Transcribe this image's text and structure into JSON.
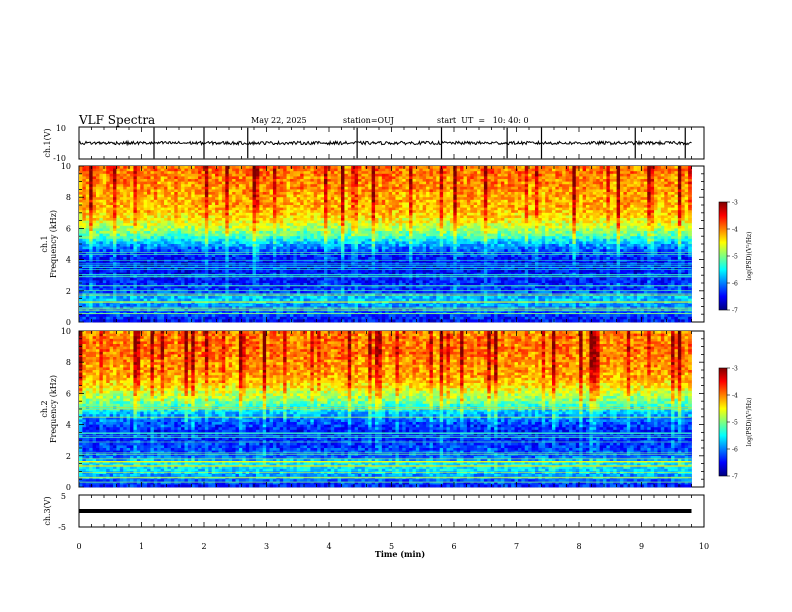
{
  "header": {
    "title": "VLF Spectra",
    "date": "May 22, 2025",
    "station": "station=OUJ",
    "start": "start  UT  =   10: 40: 0"
  },
  "chart_data": [
    {
      "type": "line",
      "panel": "ch1-waveform",
      "ylabel": "ch.1(V)",
      "ylim": [
        -10,
        10
      ],
      "ytick_labels": [
        "10",
        "-10"
      ],
      "x_range_min": [
        0,
        9.8
      ],
      "series": [
        {
          "baseline": 0.0,
          "noise_amplitude": 1.0,
          "spike_times": [
            1.2,
            2.0,
            2.7,
            4.45,
            5.8,
            6.85,
            7.4,
            8.9,
            9.7
          ]
        }
      ]
    },
    {
      "type": "heatmap",
      "panel": "ch1-spectrogram",
      "ylabel": "ch.1",
      "ylabel2": "Frequency (kHz)",
      "ylim": [
        0,
        10
      ],
      "ytick_labels": [
        "0",
        "2",
        "4",
        "6",
        "8",
        "10"
      ],
      "x_range_min": [
        0,
        9.8
      ],
      "colorbar": {
        "label": "log(PSD)(V²/Hz)",
        "range": [
          -7,
          -3
        ],
        "tick_labels": [
          "-3",
          "-4",
          "-5",
          "-6",
          "-7"
        ]
      },
      "profile_log_psd": [
        {
          "f": 0.0,
          "v": -6.5
        },
        {
          "f": 0.5,
          "v": -6.2
        },
        {
          "f": 1.0,
          "v": -6.0
        },
        {
          "f": 1.5,
          "v": -5.7
        },
        {
          "f": 2.0,
          "v": -6.3
        },
        {
          "f": 2.5,
          "v": -6.4
        },
        {
          "f": 3.0,
          "v": -6.5
        },
        {
          "f": 3.5,
          "v": -6.6
        },
        {
          "f": 4.0,
          "v": -6.5
        },
        {
          "f": 4.5,
          "v": -6.3
        },
        {
          "f": 5.0,
          "v": -5.9
        },
        {
          "f": 5.5,
          "v": -5.3
        },
        {
          "f": 6.0,
          "v": -4.9
        },
        {
          "f": 6.5,
          "v": -4.6
        },
        {
          "f": 7.0,
          "v": -4.4
        },
        {
          "f": 7.5,
          "v": -4.3
        },
        {
          "f": 8.0,
          "v": -4.3
        },
        {
          "f": 8.5,
          "v": -4.2
        },
        {
          "f": 9.0,
          "v": -4.2
        },
        {
          "f": 9.5,
          "v": -4.1
        },
        {
          "f": 10.0,
          "v": -4.1
        }
      ]
    },
    {
      "type": "heatmap",
      "panel": "ch2-spectrogram",
      "ylabel": "ch.2",
      "ylabel2": "Frequency (kHz)",
      "ylim": [
        0,
        10
      ],
      "ytick_labels": [
        "0",
        "2",
        "4",
        "6",
        "8",
        "10"
      ],
      "x_range_min": [
        0,
        9.8
      ],
      "colorbar": {
        "label": "log(PSD)(V²/Hz)",
        "range": [
          -7,
          -3
        ],
        "tick_labels": [
          "-3",
          "-4",
          "-5",
          "-6",
          "-7"
        ]
      },
      "profile_log_psd": [
        {
          "f": 0.0,
          "v": -6.4
        },
        {
          "f": 0.5,
          "v": -6.1
        },
        {
          "f": 1.0,
          "v": -5.7
        },
        {
          "f": 1.5,
          "v": -5.5
        },
        {
          "f": 2.0,
          "v": -6.2
        },
        {
          "f": 2.5,
          "v": -6.3
        },
        {
          "f": 3.0,
          "v": -6.4
        },
        {
          "f": 3.5,
          "v": -6.5
        },
        {
          "f": 4.0,
          "v": -6.3
        },
        {
          "f": 4.5,
          "v": -6.0
        },
        {
          "f": 5.0,
          "v": -5.6
        },
        {
          "f": 5.5,
          "v": -5.1
        },
        {
          "f": 6.0,
          "v": -4.8
        },
        {
          "f": 6.5,
          "v": -4.5
        },
        {
          "f": 7.0,
          "v": -4.3
        },
        {
          "f": 7.5,
          "v": -4.2
        },
        {
          "f": 8.0,
          "v": -4.2
        },
        {
          "f": 8.5,
          "v": -4.1
        },
        {
          "f": 9.0,
          "v": -4.1
        },
        {
          "f": 9.5,
          "v": -4.1
        },
        {
          "f": 10.0,
          "v": -4.2
        }
      ]
    },
    {
      "type": "line",
      "panel": "ch3-waveform",
      "ylabel": "ch.3(V)",
      "ylim": [
        -5,
        5
      ],
      "ytick_labels": [
        "5",
        "-5"
      ],
      "x_range_min": [
        0,
        9.8
      ],
      "series": [
        {
          "baseline": 0.0,
          "noise_amplitude": 0.0
        }
      ]
    }
  ],
  "x_axis": {
    "label": "Time (min)",
    "xlim": [
      0,
      10
    ],
    "tick_labels": [
      "0",
      "1",
      "2",
      "3",
      "4",
      "5",
      "6",
      "7",
      "8",
      "9",
      "10"
    ]
  },
  "colors": {
    "colormap": [
      "#00007f",
      "#0000ff",
      "#007fff",
      "#00ffff",
      "#7fff7f",
      "#ffff00",
      "#ff7f00",
      "#ff0000",
      "#7f0000"
    ]
  }
}
